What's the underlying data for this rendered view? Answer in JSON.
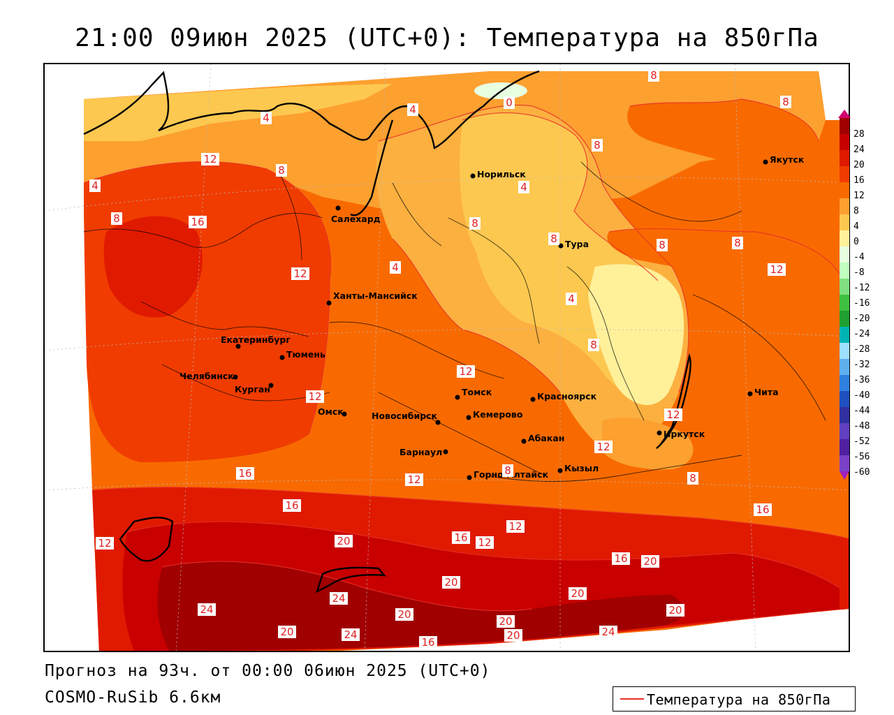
{
  "header": {
    "title": "21:00 09июн 2025 (UTC+0): Температура на 850гПа"
  },
  "footer": {
    "forecast": "Прогноз на 93ч. от 00:00 06июн 2025 (UTC+0)",
    "model": "COSMO-RuSib 6.6км",
    "legend_label": "Температура на 850гПа",
    "legend_color": "#e8302a"
  },
  "colorbar": {
    "ticks": [
      "28",
      "24",
      "20",
      "16",
      "12",
      "8",
      "4",
      "0",
      "-4",
      "-8",
      "-12",
      "-16",
      "-20",
      "-24",
      "-28",
      "-32",
      "-36",
      "-40",
      "-44",
      "-48",
      "-52",
      "-56",
      "-60"
    ],
    "colors": [
      "#d4006e",
      "#a00000",
      "#c80000",
      "#e01a00",
      "#f03c00",
      "#f86a00",
      "#fca030",
      "#fdc850",
      "#fff09a",
      "#e8ffe0",
      "#c0ffc0",
      "#80e080",
      "#40c040",
      "#20a030",
      "#00b4b4",
      "#a0e0ff",
      "#60b0f0",
      "#3080e0",
      "#2050c0",
      "#3030a0",
      "#6040c0",
      "#5020a0",
      "#7a40c8",
      "#a020c0"
    ]
  },
  "cities": [
    {
      "name": "Норильск"
    },
    {
      "name": "Якутск"
    },
    {
      "name": "Салехард"
    },
    {
      "name": "Тура"
    },
    {
      "name": "Ханты-Мансийск"
    },
    {
      "name": "Екатеринбург"
    },
    {
      "name": "Тюмень"
    },
    {
      "name": "Челябинск"
    },
    {
      "name": "Курган"
    },
    {
      "name": "Омск"
    },
    {
      "name": "Томск"
    },
    {
      "name": "Новосибирск"
    },
    {
      "name": "Кемерово"
    },
    {
      "name": "Красноярск"
    },
    {
      "name": "Барнаул"
    },
    {
      "name": "Абакан"
    },
    {
      "name": "Иркутск"
    },
    {
      "name": "Чита"
    },
    {
      "name": "Кызыл"
    },
    {
      "name": "Горно-Алтайск"
    }
  ],
  "isotherm_labels": [
    "8",
    "0",
    "8",
    "4",
    "4",
    "12",
    "8",
    "8",
    "4",
    "16",
    "8",
    "4",
    "8",
    "8",
    "8",
    "12",
    "8",
    "4",
    "4",
    "8",
    "12",
    "12",
    "12",
    "16",
    "12",
    "12",
    "8",
    "12",
    "16",
    "20",
    "12",
    "16",
    "12",
    "12",
    "16",
    "20",
    "20",
    "16",
    "24",
    "20",
    "20",
    "24",
    "20",
    "24",
    "20",
    "16",
    "20",
    "24",
    "20",
    "8"
  ]
}
